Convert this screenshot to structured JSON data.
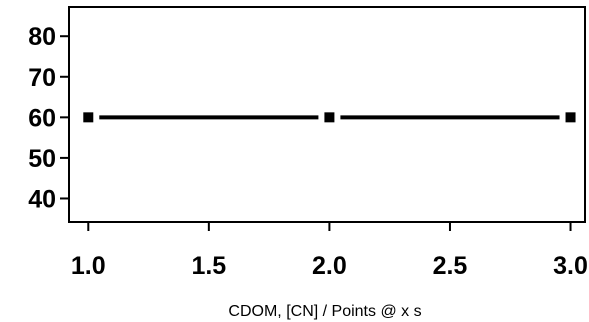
{
  "chart_data": {
    "type": "line",
    "title": "",
    "xlabel": "CDOM, [CN] / Points @ x s",
    "ylabel": "",
    "x": [
      1.0,
      2.0,
      3.0
    ],
    "series": [
      {
        "values": [
          60,
          60,
          60
        ],
        "marker": "square",
        "line_style": "b",
        "color": "#000000"
      }
    ],
    "xlim": [
      0.92,
      3.06
    ],
    "ylim": [
      34.2,
      87.2
    ],
    "x_ticks": [
      1.0,
      1.5,
      2.0,
      2.5,
      3.0
    ],
    "x_tick_labels": [
      "1.0",
      "1.5",
      "2.0",
      "2.5",
      "3.0"
    ],
    "y_ticks": [
      40,
      50,
      60,
      70,
      80
    ],
    "y_tick_labels": [
      "40",
      "50",
      "60",
      "70",
      "80"
    ],
    "grid": false,
    "legend": "none"
  }
}
